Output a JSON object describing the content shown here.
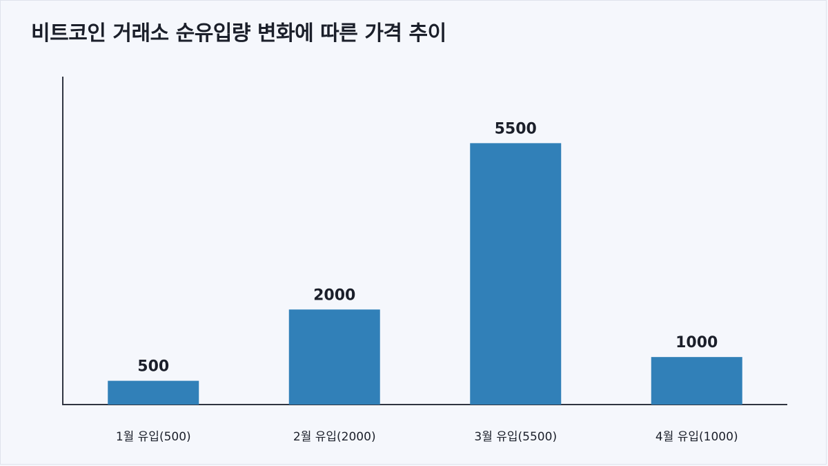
{
  "chart_data": {
    "type": "bar",
    "title": "비트코인 거래소 순유입량 변화에 따른 가격 추이",
    "categories": [
      "1월 유입(500)",
      "2월 유입(2000)",
      "3월 유입(5500)",
      "4월 유입(1000)"
    ],
    "values": [
      500,
      2000,
      5500,
      1000
    ],
    "xlabel": "",
    "ylabel": "",
    "ylim": [
      0,
      6900
    ],
    "grid": false,
    "bar_color": "#3180b8"
  }
}
